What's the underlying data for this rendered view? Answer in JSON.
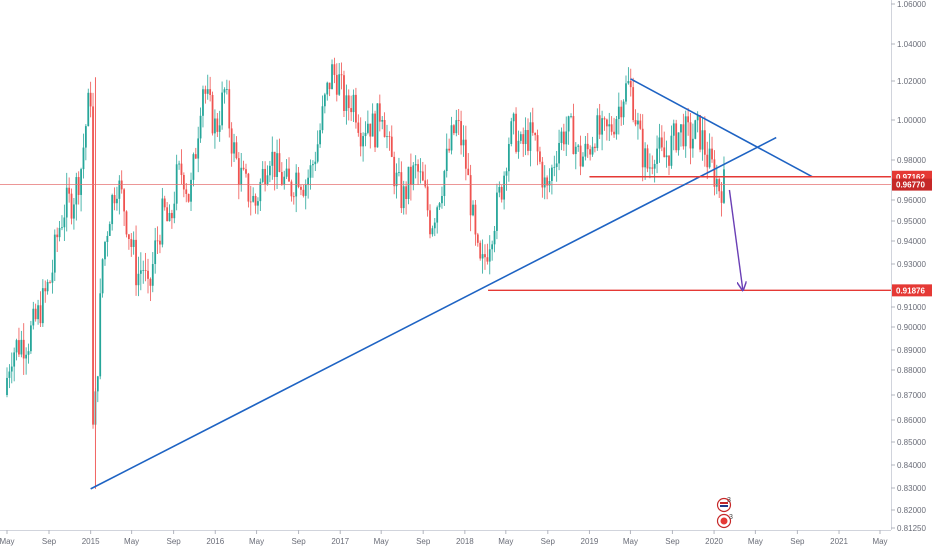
{
  "chart_data": {
    "type": "candlestick",
    "x_range": [
      "2014-05",
      "2021-05"
    ],
    "y_range": [
      0.8125,
      1.06
    ],
    "y_ticks": [
      "1.06000",
      "1.04000",
      "1.02000",
      "1.00000",
      "0.98000",
      "0.96000",
      "0.95000",
      "0.94000",
      "0.93000",
      "0.92000",
      "0.91000",
      "0.90000",
      "0.89000",
      "0.88000",
      "0.87000",
      "0.86000",
      "0.85000",
      "0.84000",
      "0.83000",
      "0.82000",
      "0.81250"
    ],
    "x_ticks": [
      {
        "label": "May",
        "date": "2014-05"
      },
      {
        "label": "Sep",
        "date": "2014-09"
      },
      {
        "label": "2015",
        "date": "2015-01"
      },
      {
        "label": "May",
        "date": "2015-05"
      },
      {
        "label": "Sep",
        "date": "2015-09"
      },
      {
        "label": "2016",
        "date": "2016-01"
      },
      {
        "label": "May",
        "date": "2016-05"
      },
      {
        "label": "Sep",
        "date": "2016-09"
      },
      {
        "label": "2017",
        "date": "2017-01"
      },
      {
        "label": "May",
        "date": "2017-05"
      },
      {
        "label": "Sep",
        "date": "2017-09"
      },
      {
        "label": "2018",
        "date": "2018-01"
      },
      {
        "label": "May",
        "date": "2018-05"
      },
      {
        "label": "Sep",
        "date": "2018-09"
      },
      {
        "label": "2019",
        "date": "2019-01"
      },
      {
        "label": "May",
        "date": "2019-05"
      },
      {
        "label": "Sep",
        "date": "2019-09"
      },
      {
        "label": "2020",
        "date": "2020-01"
      },
      {
        "label": "May",
        "date": "2020-05"
      },
      {
        "label": "Sep",
        "date": "2020-09"
      },
      {
        "label": "2021",
        "date": "2021-01"
      },
      {
        "label": "May",
        "date": "2021-05"
      }
    ],
    "price_levels": [
      {
        "label": "0.97162",
        "value": 0.97162
      },
      {
        "label": "0.96770",
        "value": 0.9677
      },
      {
        "label": "0.91876",
        "value": 0.91876
      }
    ],
    "series_path": [
      [
        "2014-05-01",
        0.87
      ],
      [
        "2014-05-20",
        0.889
      ],
      [
        "2014-06-15",
        0.893
      ],
      [
        "2014-07-10",
        0.895
      ],
      [
        "2014-08-05",
        0.905
      ],
      [
        "2014-08-25",
        0.915
      ],
      [
        "2014-09-15",
        0.925
      ],
      [
        "2014-10-05",
        0.945
      ],
      [
        "2014-10-25",
        0.957
      ],
      [
        "2014-11-15",
        0.96
      ],
      [
        "2014-12-10",
        0.975
      ],
      [
        "2014-12-30",
        1.005
      ],
      [
        "2015-01-10",
        1.015
      ],
      [
        "2015-01-15",
        0.855
      ],
      [
        "2015-01-25",
        0.87
      ],
      [
        "2015-02-10",
        0.93
      ],
      [
        "2015-03-05",
        0.955
      ],
      [
        "2015-03-25",
        0.97
      ],
      [
        "2015-04-15",
        0.958
      ],
      [
        "2015-05-05",
        0.94
      ],
      [
        "2015-05-25",
        0.925
      ],
      [
        "2015-06-10",
        0.93
      ],
      [
        "2015-06-25",
        0.915
      ],
      [
        "2015-07-15",
        0.935
      ],
      [
        "2015-08-10",
        0.955
      ],
      [
        "2015-08-28",
        0.945
      ],
      [
        "2015-09-15",
        0.97
      ],
      [
        "2015-10-05",
        0.975
      ],
      [
        "2015-10-25",
        0.96
      ],
      [
        "2015-11-15",
        0.99
      ],
      [
        "2015-12-01",
        1.02
      ],
      [
        "2015-12-15",
        1.01
      ],
      [
        "2016-01-10",
        0.995
      ],
      [
        "2016-02-05",
        1.015
      ],
      [
        "2016-02-25",
        0.99
      ],
      [
        "2016-03-15",
        0.975
      ],
      [
        "2016-04-10",
        0.965
      ],
      [
        "2016-05-05",
        0.958
      ],
      [
        "2016-05-25",
        0.972
      ],
      [
        "2016-06-15",
        0.985
      ],
      [
        "2016-07-05",
        0.975
      ],
      [
        "2016-07-25",
        0.97
      ],
      [
        "2016-08-15",
        0.965
      ],
      [
        "2016-09-05",
        0.975
      ],
      [
        "2016-09-25",
        0.968
      ],
      [
        "2016-10-15",
        0.975
      ],
      [
        "2016-11-05",
        0.99
      ],
      [
        "2016-11-25",
        1.01
      ],
      [
        "2016-12-15",
        1.025
      ],
      [
        "2017-01-05",
        1.02
      ],
      [
        "2017-01-25",
        1.005
      ],
      [
        "2017-02-15",
        1.012
      ],
      [
        "2017-03-10",
        0.995
      ],
      [
        "2017-03-30",
        1.0
      ],
      [
        "2017-04-20",
        0.995
      ],
      [
        "2017-05-10",
        1.008
      ],
      [
        "2017-05-30",
        0.985
      ],
      [
        "2017-06-20",
        0.97
      ],
      [
        "2017-07-10",
        0.96
      ],
      [
        "2017-07-30",
        0.97
      ],
      [
        "2017-08-20",
        0.975
      ],
      [
        "2017-09-10",
        0.965
      ],
      [
        "2017-09-30",
        0.948
      ],
      [
        "2017-10-20",
        0.96
      ],
      [
        "2017-11-10",
        0.975
      ],
      [
        "2017-11-30",
        0.99
      ],
      [
        "2017-12-15",
        0.998
      ],
      [
        "2018-01-05",
        0.985
      ],
      [
        "2018-01-25",
        0.96
      ],
      [
        "2018-02-10",
        0.935
      ],
      [
        "2018-02-25",
        0.925
      ],
      [
        "2018-03-10",
        0.935
      ],
      [
        "2018-03-25",
        0.945
      ],
      [
        "2018-04-10",
        0.955
      ],
      [
        "2018-04-30",
        0.97
      ],
      [
        "2018-05-15",
        0.99
      ],
      [
        "2018-06-01",
        0.995
      ],
      [
        "2018-06-20",
        0.985
      ],
      [
        "2018-07-10",
        0.992
      ],
      [
        "2018-07-30",
        0.99
      ],
      [
        "2018-08-20",
        0.975
      ],
      [
        "2018-09-05",
        0.963
      ],
      [
        "2018-09-20",
        0.975
      ],
      [
        "2018-10-10",
        0.99
      ],
      [
        "2018-10-30",
        0.995
      ],
      [
        "2018-11-20",
        0.993
      ],
      [
        "2018-12-10",
        0.98
      ],
      [
        "2019-01-05",
        0.985
      ],
      [
        "2019-01-25",
        0.995
      ],
      [
        "2019-02-15",
        0.992
      ],
      [
        "2019-03-10",
        0.995
      ],
      [
        "2019-04-01",
        1.005
      ],
      [
        "2019-04-20",
        1.015
      ],
      [
        "2019-05-05",
        1.018
      ],
      [
        "2019-05-20",
        1.005
      ],
      [
        "2019-06-10",
        0.985
      ],
      [
        "2019-06-30",
        0.975
      ],
      [
        "2019-07-20",
        0.988
      ],
      [
        "2019-08-10",
        0.98
      ],
      [
        "2019-08-30",
        0.985
      ],
      [
        "2019-09-20",
        0.993
      ],
      [
        "2019-10-10",
        0.995
      ],
      [
        "2019-10-30",
        0.99
      ],
      [
        "2019-11-20",
        0.995
      ],
      [
        "2019-12-05",
        0.99
      ],
      [
        "2019-12-20",
        0.98
      ],
      [
        "2020-01-05",
        0.975
      ],
      [
        "2020-01-15",
        0.97
      ],
      [
        "2020-01-25",
        0.966
      ],
      [
        "2020-02-01",
        0.968
      ]
    ],
    "drawings": [
      {
        "kind": "trendline",
        "color": "#1e63c3",
        "from": [
          "2015-01-01",
          0.8296
        ],
        "to": [
          "2020-07-01",
          0.9912
        ]
      },
      {
        "kind": "trendline",
        "color": "#1e63c3",
        "from": [
          "2019-05-01",
          1.0212
        ],
        "to": [
          "2020-10-15",
          0.9716
        ]
      },
      {
        "kind": "hline",
        "color": "#e53935",
        "from": [
          "2019-01-01",
          0.97162
        ],
        "to_right": true
      },
      {
        "kind": "hline",
        "color": "#e53935",
        "from": [
          "2018-03-10",
          0.91876
        ],
        "to_right": true
      },
      {
        "kind": "arrow",
        "color": "#6a3fb5",
        "from": [
          "2020-02-15",
          0.965
        ],
        "to": [
          "2020-03-25",
          0.9193
        ]
      }
    ],
    "grid": false
  }
}
